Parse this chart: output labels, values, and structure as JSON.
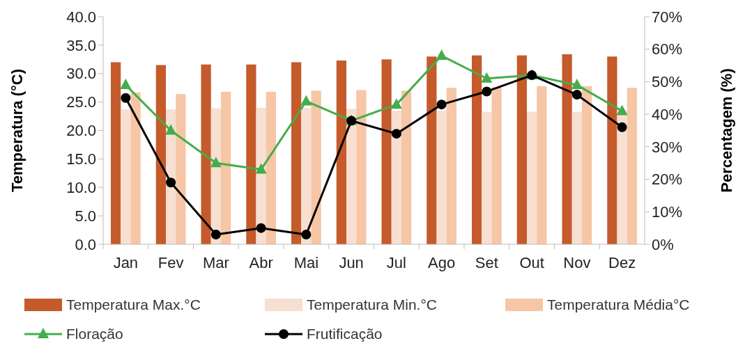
{
  "chart_data": {
    "type": "bar",
    "ylabel": "Temperatura  (°C)",
    "y2label": "Percentagem (%)",
    "categories": [
      "Jan",
      "Fev",
      "Mar",
      "Abr",
      "Mai",
      "Jun",
      "Jul",
      "Ago",
      "Set",
      "Out",
      "Nov",
      "Dez"
    ],
    "series": [
      {
        "name": "Temperatura Max.°C",
        "color": "#c55a2b",
        "values": [
          32.0,
          31.5,
          31.6,
          31.6,
          32.0,
          32.3,
          32.5,
          33.0,
          33.2,
          33.2,
          33.4,
          33.0
        ]
      },
      {
        "name": "Temperatura Min.°C",
        "color": "#f7dfd1",
        "values": [
          23.7,
          23.7,
          23.9,
          24.0,
          24.0,
          23.8,
          23.5,
          23.5,
          23.3,
          23.3,
          23.3,
          23.5
        ]
      },
      {
        "name": "Temperatura Média°C",
        "color": "#f6c6a6",
        "values": [
          26.7,
          26.4,
          26.8,
          26.8,
          27.0,
          27.1,
          27.0,
          27.5,
          27.6,
          27.8,
          27.8,
          27.5
        ]
      },
      {
        "name": "Floração",
        "type": "line",
        "axis": "y2",
        "color": "#45ad4b",
        "marker": "triangle",
        "values": [
          49,
          35,
          25,
          23,
          44,
          38,
          43,
          58,
          51,
          52,
          49,
          41
        ]
      },
      {
        "name": "Frutificação",
        "type": "line",
        "axis": "y2",
        "color": "#000000",
        "marker": "circle",
        "values": [
          45,
          19,
          3,
          5,
          3,
          38,
          34,
          43,
          47,
          52,
          46,
          36
        ]
      }
    ],
    "ylim": [
      0,
      40
    ],
    "yticks": [
      {
        "value": 0,
        "label": "0.0"
      },
      {
        "value": 5,
        "label": "5.0"
      },
      {
        "value": 10,
        "label": "10.0"
      },
      {
        "value": 15,
        "label": "15.0"
      },
      {
        "value": 20,
        "label": "20.0"
      },
      {
        "value": 25,
        "label": "25.0"
      },
      {
        "value": 30,
        "label": "30.0"
      },
      {
        "value": 35,
        "label": "35.0"
      },
      {
        "value": 40,
        "label": "40.0"
      }
    ],
    "y2lim": [
      0,
      70
    ],
    "y2ticks": [
      {
        "value": 0,
        "label": "0%"
      },
      {
        "value": 10,
        "label": "10%"
      },
      {
        "value": 20,
        "label": "20%"
      },
      {
        "value": 30,
        "label": "30%"
      },
      {
        "value": 40,
        "label": "40%"
      },
      {
        "value": 50,
        "label": "50%"
      },
      {
        "value": 60,
        "label": "60%"
      },
      {
        "value": 70,
        "label": "70%"
      }
    ],
    "legend": "bottom"
  }
}
